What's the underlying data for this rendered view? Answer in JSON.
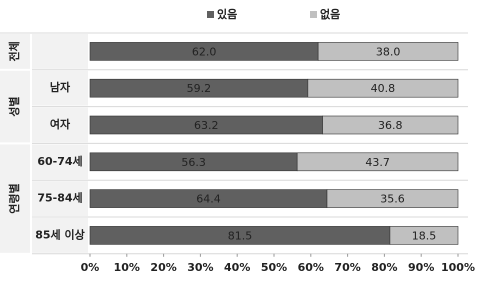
{
  "chart_data": {
    "type": "stacked-barh",
    "groups": [
      {
        "name": "전체",
        "categories": [
          null
        ]
      },
      {
        "name": "성별",
        "categories": [
          "남자",
          "여자"
        ]
      },
      {
        "name": "연령별",
        "categories": [
          "60-74세",
          "75-84세",
          "85세 이상"
        ]
      }
    ],
    "series": [
      {
        "name": "있음",
        "color": "#606060",
        "values": [
          62.0,
          59.2,
          63.2,
          56.3,
          64.4,
          81.5
        ],
        "value_labels": [
          "62.0",
          "59.2",
          "63.2",
          "56.3",
          "64.4",
          "81.5"
        ]
      },
      {
        "name": "없음",
        "color": "#c0c0c0",
        "values": [
          38.0,
          40.8,
          36.8,
          43.7,
          35.6,
          18.5
        ],
        "value_labels": [
          "38.0",
          "40.8",
          "36.8",
          "43.7",
          "35.6",
          "18.5"
        ]
      }
    ],
    "xlim": [
      0,
      100
    ],
    "xticks": [
      {
        "value": 0,
        "label": "0%"
      },
      {
        "value": 10,
        "label": "10%"
      },
      {
        "value": 20,
        "label": "20%"
      },
      {
        "value": 30,
        "label": "30%"
      },
      {
        "value": 40,
        "label": "40%"
      },
      {
        "value": 50,
        "label": "50%"
      },
      {
        "value": 60,
        "label": "60%"
      },
      {
        "value": 70,
        "label": "70%"
      },
      {
        "value": 80,
        "label": "80%"
      },
      {
        "value": 90,
        "label": "90%"
      },
      {
        "value": 100,
        "label": "100%"
      }
    ],
    "legend": "top"
  }
}
